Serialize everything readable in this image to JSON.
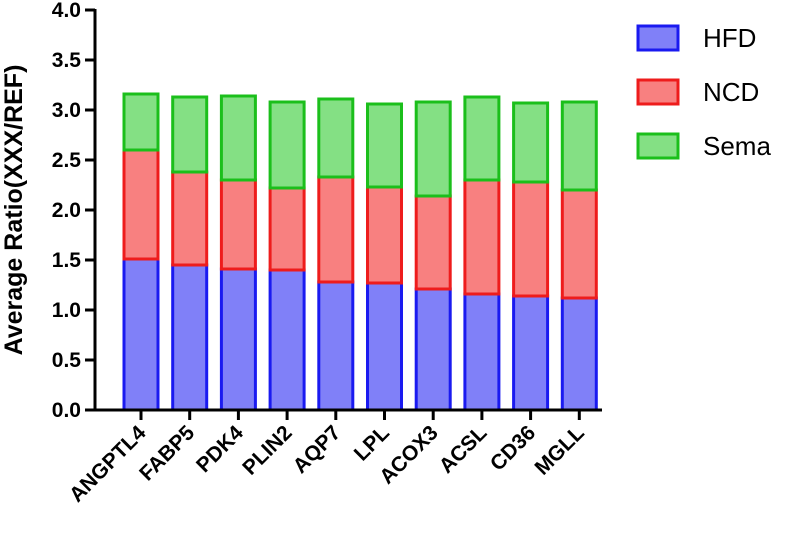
{
  "chart_data": {
    "type": "bar",
    "stacked": true,
    "title": "",
    "xlabel": "",
    "ylabel": "Average Ratio(XXX/REF)",
    "ylim": [
      0,
      4.0
    ],
    "yticks": [
      "0.0",
      "0.5",
      "1.0",
      "1.5",
      "2.0",
      "2.5",
      "3.0",
      "3.5",
      "4.0"
    ],
    "grid": false,
    "legend_position": "top-right",
    "categories": [
      "ANGPTL4",
      "FABP5",
      "PDK4",
      "PLIN2",
      "AQP7",
      "LPL",
      "ACOX3",
      "ACSL",
      "CD36",
      "MGLL"
    ],
    "series": [
      {
        "name": "HFD",
        "fill": "#8080f8",
        "stroke": "#1a1af0",
        "values": [
          1.51,
          1.45,
          1.41,
          1.4,
          1.28,
          1.27,
          1.21,
          1.16,
          1.14,
          1.12
        ]
      },
      {
        "name": "NCD",
        "fill": "#f88080",
        "stroke": "#ee1c1c",
        "values": [
          1.09,
          0.93,
          0.89,
          0.82,
          1.05,
          0.96,
          0.93,
          1.14,
          1.14,
          1.08
        ]
      },
      {
        "name": "Sema",
        "fill": "#84e084",
        "stroke": "#1bbf1b",
        "values": [
          0.56,
          0.75,
          0.84,
          0.86,
          0.78,
          0.83,
          0.94,
          0.83,
          0.79,
          0.88
        ]
      }
    ]
  }
}
